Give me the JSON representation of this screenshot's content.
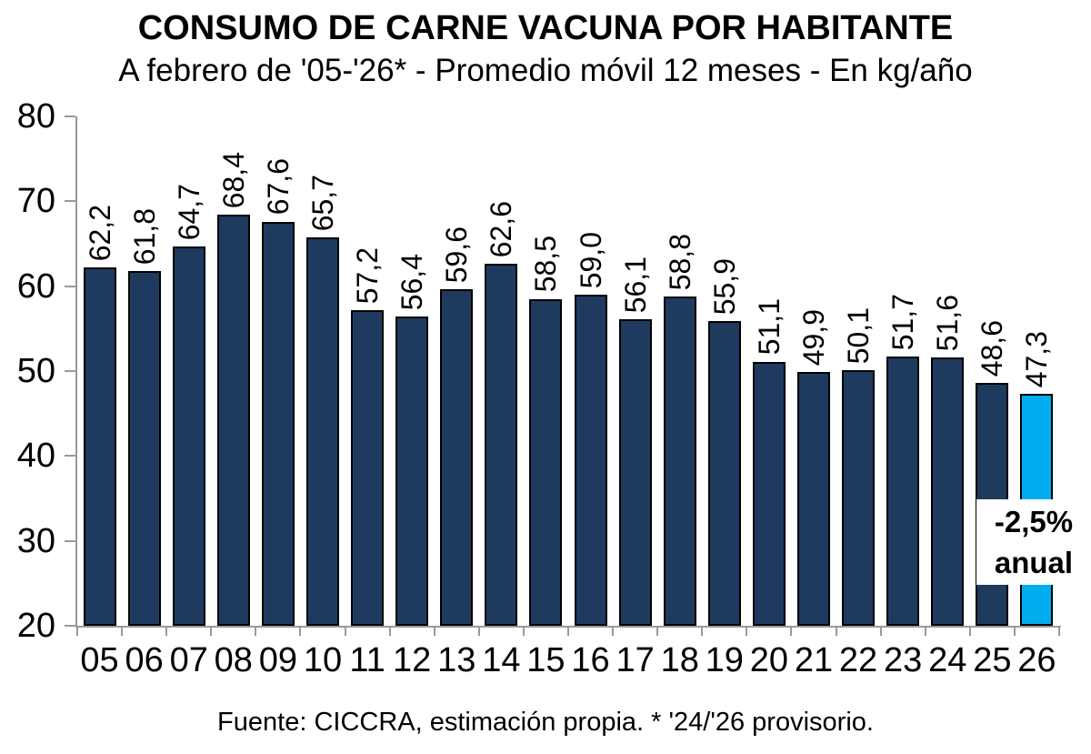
{
  "title": "CONSUMO DE CARNE VACUNA POR HABITANTE",
  "subtitle": "A febrero de '05-'26* - Promedio móvil 12 meses -  En kg/año",
  "footer": "Fuente: CICCRA, estimación propia. * '24/'26 provisorio.",
  "annotation": {
    "line1": "-2,5%",
    "line2": "anual"
  },
  "colors": {
    "bar": "#1F3A5F",
    "bar_outline": "#000000",
    "highlight_bar": "#00AEEF",
    "axis": "#999999",
    "text": "#000000",
    "background": "#FFFFFF"
  },
  "chart_data": {
    "type": "bar",
    "title": "CONSUMO DE CARNE VACUNA POR HABITANTE",
    "subtitle": "A febrero de '05-'26* - Promedio móvil 12 meses - En kg/año",
    "unit": "kg/año",
    "categories": [
      "05",
      "06",
      "07",
      "08",
      "09",
      "10",
      "11",
      "12",
      "13",
      "14",
      "15",
      "16",
      "17",
      "18",
      "19",
      "20",
      "21",
      "22",
      "23",
      "24",
      "25",
      "26"
    ],
    "values": [
      62.2,
      61.8,
      64.7,
      68.4,
      67.6,
      65.7,
      57.2,
      56.4,
      59.6,
      62.6,
      58.5,
      59.0,
      56.1,
      58.8,
      55.9,
      51.1,
      49.9,
      50.1,
      51.7,
      51.6,
      48.6,
      47.3
    ],
    "value_labels": [
      "62,2",
      "61,8",
      "64,7",
      "68,4",
      "67,6",
      "65,7",
      "57,2",
      "56,4",
      "59,6",
      "62,6",
      "58,5",
      "59,0",
      "56,1",
      "58,8",
      "55,9",
      "51,1",
      "49,9",
      "50,1",
      "51,7",
      "51,6",
      "48,6",
      "47,3"
    ],
    "highlight_index": 21,
    "ylim": [
      20,
      80
    ],
    "yticks": [
      20,
      30,
      40,
      50,
      60,
      70,
      80
    ],
    "grid": false,
    "legend": false,
    "annotation_text": "-2,5% anual"
  }
}
